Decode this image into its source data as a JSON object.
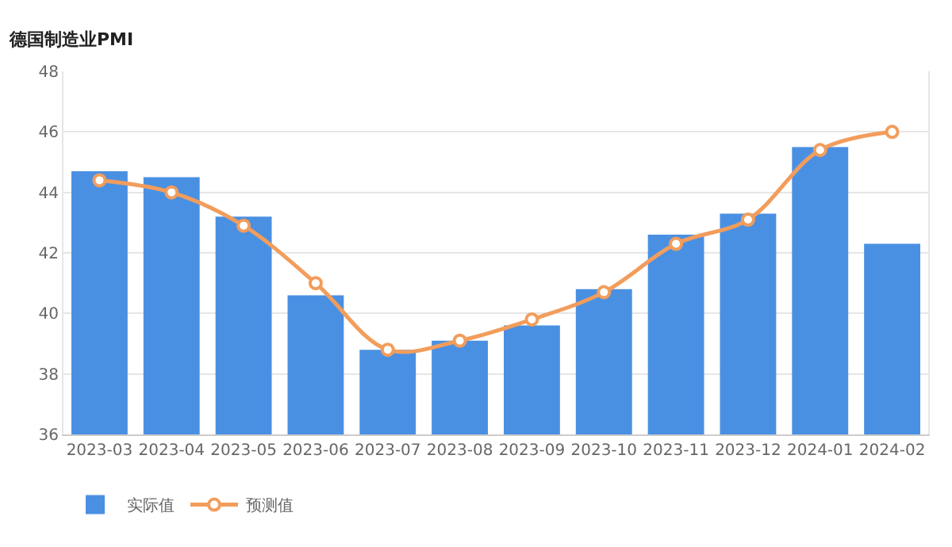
{
  "chart_data": {
    "type": "bar",
    "title": "德国制造业PMI",
    "categories": [
      "2023-03",
      "2023-04",
      "2023-05",
      "2023-06",
      "2023-07",
      "2023-08",
      "2023-09",
      "2023-10",
      "2023-11",
      "2023-12",
      "2024-01",
      "2024-02"
    ],
    "series": [
      {
        "name": "实际值",
        "color": "#4a90e2",
        "values": [
          44.7,
          44.5,
          43.2,
          40.6,
          38.8,
          39.1,
          39.6,
          40.8,
          42.6,
          43.3,
          45.5,
          42.3
        ]
      },
      {
        "name": "预测值",
        "type": "line",
        "color": "#f29d5c",
        "marker": "circle",
        "values": [
          44.4,
          44.0,
          42.9,
          41.0,
          38.8,
          39.1,
          39.8,
          40.7,
          42.3,
          43.1,
          45.4,
          46.0
        ]
      }
    ],
    "ylim": [
      36,
      48
    ],
    "yticks": [
      36,
      38,
      40,
      42,
      44,
      46,
      48
    ],
    "grid": "y",
    "legend": "bottom left"
  }
}
